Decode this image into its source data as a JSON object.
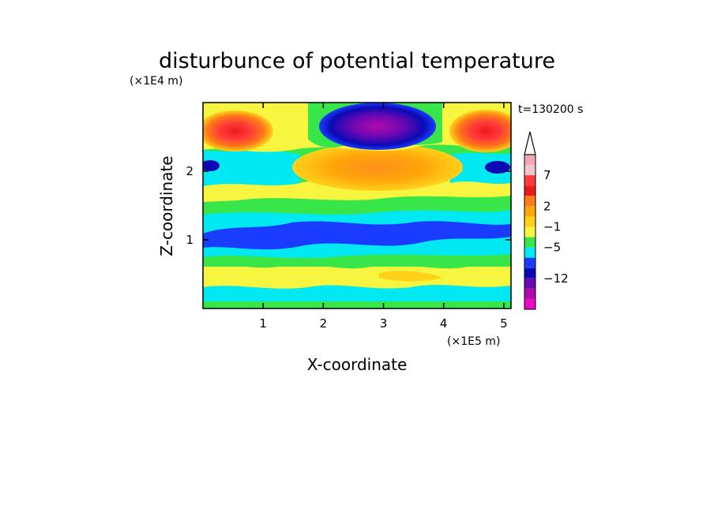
{
  "chart_data": {
    "type": "heatmap",
    "title": "disturbunce of potential temperature",
    "time_label": "t=130200 s",
    "xlabel": "X-coordinate",
    "ylabel": "Z-coordinate",
    "x_unit": "(×1E5 m)",
    "y_unit": "(×1E4 m)",
    "xlim": [
      0,
      5.12
    ],
    "ylim": [
      0,
      3.0
    ],
    "x_ticks": [
      "1",
      "2",
      "3",
      "4",
      "5"
    ],
    "x_tick_values": [
      1,
      2,
      3,
      4,
      5
    ],
    "y_ticks": [
      "1",
      "2"
    ],
    "y_tick_values": [
      1,
      2
    ],
    "colorbar": {
      "labels": [
        "7",
        "2",
        "−1",
        "−5",
        "−12"
      ],
      "label_band_index": [
        2,
        5,
        7,
        9,
        12
      ],
      "extend_top": true,
      "bands": [
        {
          "color": "#f0a8b4"
        },
        {
          "color": "#f4c4cc"
        },
        {
          "color": "#ff3a3a"
        },
        {
          "color": "#ee1b1b"
        },
        {
          "color": "#ff7a18"
        },
        {
          "color": "#ffa60a"
        },
        {
          "color": "#ffd21a"
        },
        {
          "color": "#f7f540"
        },
        {
          "color": "#39e64a"
        },
        {
          "color": "#00e8f2"
        },
        {
          "color": "#1a3cff"
        },
        {
          "color": "#0a0ab4"
        },
        {
          "color": "#6a08b4"
        },
        {
          "color": "#b00aaa"
        },
        {
          "color": "#ee0ac0"
        }
      ]
    },
    "layers": [
      {
        "z": [
          0.0,
          0.12
        ],
        "label": "green / yellow patches",
        "level": 1
      },
      {
        "z": [
          0.12,
          0.35
        ],
        "label": "cyan / green band",
        "level": 0
      },
      {
        "z": [
          0.35,
          0.62
        ],
        "label": "yellow / orange band",
        "level": 2
      },
      {
        "z": [
          0.62,
          0.78
        ],
        "label": "green band",
        "level": 0
      },
      {
        "z": [
          0.78,
          1.4
        ],
        "label": "blue trough band",
        "level": -4
      },
      {
        "z": [
          1.4,
          1.7
        ],
        "label": "green / cyan band",
        "level": 0
      },
      {
        "z": [
          1.7,
          2.3
        ],
        "label": "orange warm core",
        "level": 3
      },
      {
        "z": [
          2.3,
          3.0
        ],
        "label": "purple cold core aloft, red edges",
        "level": -9
      }
    ]
  }
}
